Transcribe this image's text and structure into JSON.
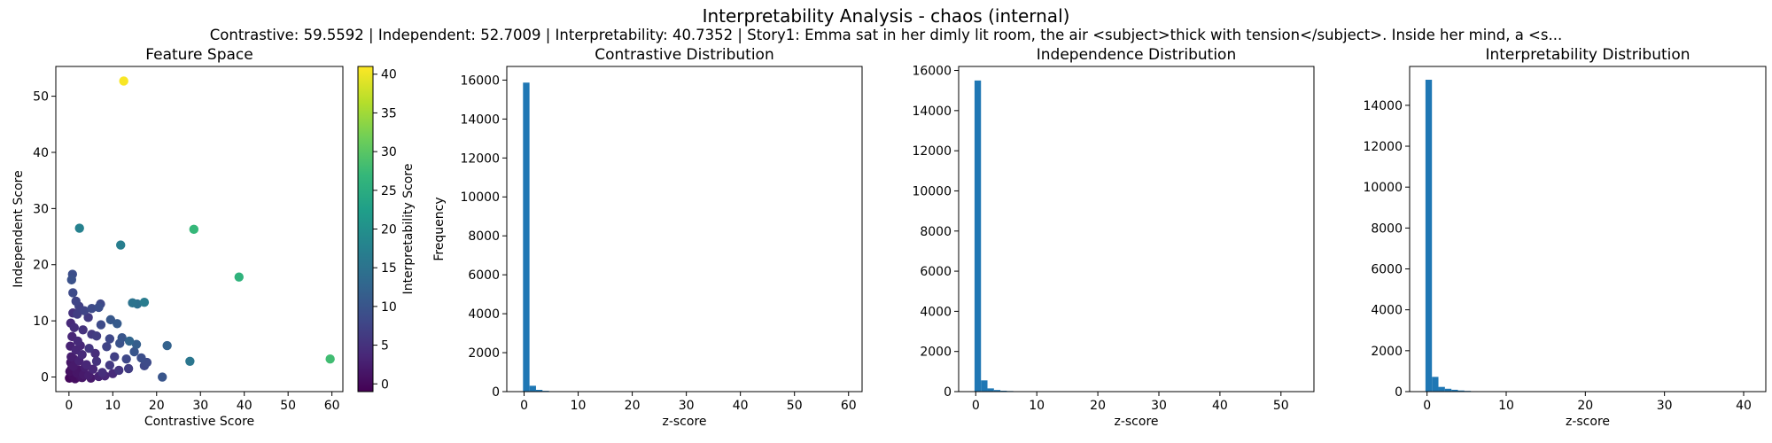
{
  "figure": {
    "title": "Interpretability Analysis - chaos (internal)",
    "subtitle": "Contrastive: 59.5592 | Independent: 52.7009 | Interpretability: 40.7352 | Story1: Emma sat in her dimly lit room, the air <subject>thick with tension</subject>. Inside her mind, a <s..."
  },
  "chart_data": [
    {
      "type": "scatter",
      "title": "Feature Space",
      "xlabel": "Contrastive Score",
      "ylabel": "Independent Score",
      "xlim": [
        -3,
        62.5
      ],
      "ylim": [
        -2.6,
        55.3
      ],
      "xticks": [
        0,
        10,
        20,
        30,
        40,
        50,
        60
      ],
      "yticks": [
        0,
        10,
        20,
        30,
        40,
        50
      ],
      "colorbar": {
        "label": "Interpretability Score",
        "range": [
          -1,
          41
        ],
        "ticks": [
          0,
          5,
          10,
          15,
          20,
          25,
          30,
          35,
          40
        ],
        "colormap": [
          "#440154",
          "#482878",
          "#3e4a89",
          "#31688e",
          "#26828e",
          "#1f9e89",
          "#35b779",
          "#6ece58",
          "#b5de2b",
          "#fde725"
        ]
      },
      "points": [
        {
          "x": 12.5,
          "y": 52.7,
          "c": 40.7
        },
        {
          "x": 59.6,
          "y": 3.2,
          "c": 28.0
        },
        {
          "x": 28.5,
          "y": 26.3,
          "c": 27.0
        },
        {
          "x": 38.8,
          "y": 17.8,
          "c": 26.0
        },
        {
          "x": 2.4,
          "y": 26.5,
          "c": 17.5
        },
        {
          "x": 11.8,
          "y": 23.5,
          "c": 17.0
        },
        {
          "x": 27.6,
          "y": 2.8,
          "c": 15.5
        },
        {
          "x": 14.5,
          "y": 13.2,
          "c": 15.0
        },
        {
          "x": 17.2,
          "y": 13.3,
          "c": 16.5
        },
        {
          "x": 15.6,
          "y": 13.0,
          "c": 14.5
        },
        {
          "x": 22.4,
          "y": 5.6,
          "c": 12.0
        },
        {
          "x": 21.3,
          "y": 0.0,
          "c": 10.0
        },
        {
          "x": 0.8,
          "y": 18.3,
          "c": 9.0
        },
        {
          "x": 0.6,
          "y": 17.3,
          "c": 9.5
        },
        {
          "x": 0.9,
          "y": 15.0,
          "c": 8.5
        },
        {
          "x": 7.2,
          "y": 13.0,
          "c": 8.0
        },
        {
          "x": 5.2,
          "y": 12.2,
          "c": 8.5
        },
        {
          "x": 6.8,
          "y": 12.4,
          "c": 9.0
        },
        {
          "x": 1.6,
          "y": 13.5,
          "c": 7.5
        },
        {
          "x": 2.3,
          "y": 12.6,
          "c": 7.0
        },
        {
          "x": 1.9,
          "y": 11.2,
          "c": 6.5
        },
        {
          "x": 3.5,
          "y": 11.8,
          "c": 7.5
        },
        {
          "x": 4.4,
          "y": 10.6,
          "c": 6.0
        },
        {
          "x": 9.5,
          "y": 10.2,
          "c": 10.5
        },
        {
          "x": 11.0,
          "y": 9.5,
          "c": 11.0
        },
        {
          "x": 12.1,
          "y": 7.0,
          "c": 10.0
        },
        {
          "x": 11.6,
          "y": 6.0,
          "c": 9.5
        },
        {
          "x": 13.8,
          "y": 6.4,
          "c": 12.5
        },
        {
          "x": 15.4,
          "y": 5.8,
          "c": 11.5
        },
        {
          "x": 8.6,
          "y": 5.4,
          "c": 7.5
        },
        {
          "x": 6.3,
          "y": 7.3,
          "c": 6.5
        },
        {
          "x": 7.3,
          "y": 9.3,
          "c": 8.5
        },
        {
          "x": 9.3,
          "y": 6.8,
          "c": 8.0
        },
        {
          "x": 5.2,
          "y": 7.6,
          "c": 6.0
        },
        {
          "x": 16.5,
          "y": 3.4,
          "c": 9.0
        },
        {
          "x": 17.8,
          "y": 2.6,
          "c": 8.5
        },
        {
          "x": 17.2,
          "y": 2.0,
          "c": 8.0
        },
        {
          "x": 14.9,
          "y": 4.5,
          "c": 10.0
        },
        {
          "x": 13.1,
          "y": 3.2,
          "c": 8.0
        },
        {
          "x": 10.4,
          "y": 3.6,
          "c": 7.0
        },
        {
          "x": 9.3,
          "y": 2.1,
          "c": 6.0
        },
        {
          "x": 11.4,
          "y": 1.2,
          "c": 5.5
        },
        {
          "x": 13.6,
          "y": 1.5,
          "c": 6.5
        },
        {
          "x": 6.3,
          "y": 2.8,
          "c": 5.0
        },
        {
          "x": 7.6,
          "y": 0.8,
          "c": 4.5
        },
        {
          "x": 4.6,
          "y": 5.1,
          "c": 5.5
        },
        {
          "x": 3.2,
          "y": 8.4,
          "c": 5.0
        },
        {
          "x": 0.4,
          "y": 9.6,
          "c": 4.0
        },
        {
          "x": 1.2,
          "y": 8.8,
          "c": 4.5
        },
        {
          "x": 0.7,
          "y": 7.2,
          "c": 3.5
        },
        {
          "x": 2.0,
          "y": 6.4,
          "c": 4.0
        },
        {
          "x": 0.3,
          "y": 5.5,
          "c": 3.0
        },
        {
          "x": 1.6,
          "y": 4.8,
          "c": 3.5
        },
        {
          "x": 3.0,
          "y": 4.0,
          "c": 4.0
        },
        {
          "x": 0.5,
          "y": 3.6,
          "c": 2.5
        },
        {
          "x": 2.3,
          "y": 2.9,
          "c": 3.0
        },
        {
          "x": 4.0,
          "y": 2.2,
          "c": 3.5
        },
        {
          "x": 1.0,
          "y": 1.9,
          "c": 2.0
        },
        {
          "x": 5.5,
          "y": 1.4,
          "c": 3.5
        },
        {
          "x": 0.2,
          "y": 1.0,
          "c": 1.0
        },
        {
          "x": 1.8,
          "y": 0.7,
          "c": 1.5
        },
        {
          "x": 3.3,
          "y": 0.4,
          "c": 2.0
        },
        {
          "x": 0.8,
          "y": 0.2,
          "c": 0.5
        },
        {
          "x": 2.6,
          "y": 0.0,
          "c": 1.0
        },
        {
          "x": 4.5,
          "y": 0.3,
          "c": 2.5
        },
        {
          "x": 6.8,
          "y": 0.1,
          "c": 3.0
        },
        {
          "x": 0.1,
          "y": -0.2,
          "c": 0.0
        },
        {
          "x": 1.4,
          "y": -0.3,
          "c": 0.5
        },
        {
          "x": 3.0,
          "y": -0.1,
          "c": 1.5
        },
        {
          "x": 5.0,
          "y": -0.2,
          "c": 2.0
        },
        {
          "x": 8.2,
          "y": 0.2,
          "c": 3.5
        },
        {
          "x": 10.0,
          "y": 0.6,
          "c": 4.0
        },
        {
          "x": 0.4,
          "y": 2.6,
          "c": 1.5
        },
        {
          "x": 1.1,
          "y": 3.2,
          "c": 2.0
        },
        {
          "x": 2.1,
          "y": 1.3,
          "c": 1.5
        },
        {
          "x": 0.6,
          "y": 1.5,
          "c": 1.0
        },
        {
          "x": 3.6,
          "y": 1.7,
          "c": 2.5
        },
        {
          "x": 6.0,
          "y": 4.2,
          "c": 4.5
        },
        {
          "x": 2.6,
          "y": 5.6,
          "c": 3.5
        },
        {
          "x": 0.9,
          "y": 11.4,
          "c": 5.0
        }
      ]
    },
    {
      "type": "bar",
      "title": "Contrastive Distribution",
      "xlabel": "z-score",
      "ylabel": "Frequency",
      "bin_start": -0.2,
      "bin_width": 1.2,
      "values": [
        15870,
        300,
        90,
        40,
        20,
        10,
        6,
        4,
        3,
        2,
        2,
        1,
        1,
        1
      ],
      "xlim": [
        -3.2,
        62.5
      ],
      "ylim": [
        0,
        16700
      ],
      "xticks": [
        0,
        10,
        20,
        30,
        40,
        50,
        60
      ],
      "yticks": [
        0,
        2000,
        4000,
        6000,
        8000,
        10000,
        12000,
        14000,
        16000
      ]
    },
    {
      "type": "bar",
      "title": "Independence Distribution",
      "xlabel": "z-score",
      "ylabel": "",
      "bin_start": -0.2,
      "bin_width": 1.06,
      "values": [
        15500,
        560,
        160,
        80,
        45,
        30,
        20,
        12,
        8,
        5,
        3,
        2
      ],
      "xlim": [
        -2.8,
        55.4
      ],
      "ylim": [
        0,
        16200
      ],
      "xticks": [
        0,
        10,
        20,
        30,
        40,
        50
      ],
      "yticks": [
        0,
        2000,
        4000,
        6000,
        8000,
        10000,
        12000,
        14000,
        16000
      ]
    },
    {
      "type": "bar",
      "title": "Interpretability Distribution",
      "xlabel": "z-score",
      "ylabel": "",
      "bin_start": -0.2,
      "bin_width": 0.82,
      "values": [
        15250,
        720,
        230,
        140,
        90,
        55,
        35,
        22,
        15,
        10,
        6,
        3
      ],
      "xlim": [
        -2.2,
        42.8
      ],
      "ylim": [
        0,
        15900
      ],
      "xticks": [
        0,
        10,
        20,
        30,
        40
      ],
      "yticks": [
        0,
        2000,
        4000,
        6000,
        8000,
        10000,
        12000,
        14000
      ]
    }
  ]
}
